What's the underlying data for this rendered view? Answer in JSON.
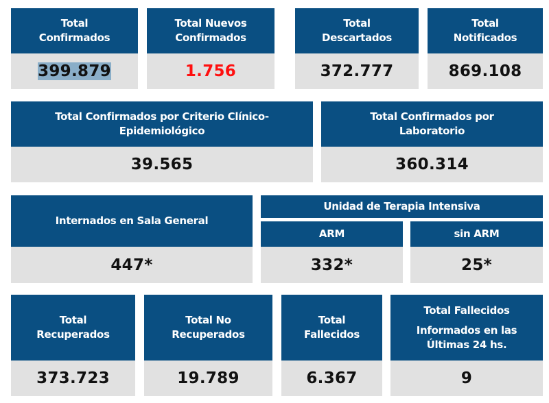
{
  "row1": [
    {
      "label": "Total Confirmados",
      "value": "399.879"
    },
    {
      "label": "Total Nuevos Confirmados",
      "value": "1.756"
    },
    {
      "label": "Total Descartados",
      "value": "372.777"
    },
    {
      "label": "Total Notificados",
      "value": "869.108"
    }
  ],
  "row2": [
    {
      "label": "Total Confirmados por Criterio Clínico-Epidemiológico",
      "value": "39.565"
    },
    {
      "label": "Total Confirmados por Laboratorio",
      "value": "360.314"
    }
  ],
  "row3": {
    "sala": {
      "label": "Internados en Sala General",
      "value": "447*"
    },
    "uti_title": "Unidad de Terapia Intensiva",
    "arm": {
      "label": "ARM",
      "value": "332*"
    },
    "sin_arm": {
      "label": "sin ARM",
      "value": "25*"
    }
  },
  "row4": [
    {
      "label": "Total Recuperados",
      "value": "373.723"
    },
    {
      "label": "Total No Recuperados",
      "value": "19.789"
    },
    {
      "label": "Total Fallecidos",
      "value": "6.367"
    },
    {
      "label": "Total Fallecidos",
      "sublabel": "Informados en las Últimas 24 hs.",
      "value": "9"
    }
  ],
  "colors": {
    "header": "#0a4f82",
    "value_bg": "#e1e1e1",
    "new_cases": "#ff1010"
  }
}
